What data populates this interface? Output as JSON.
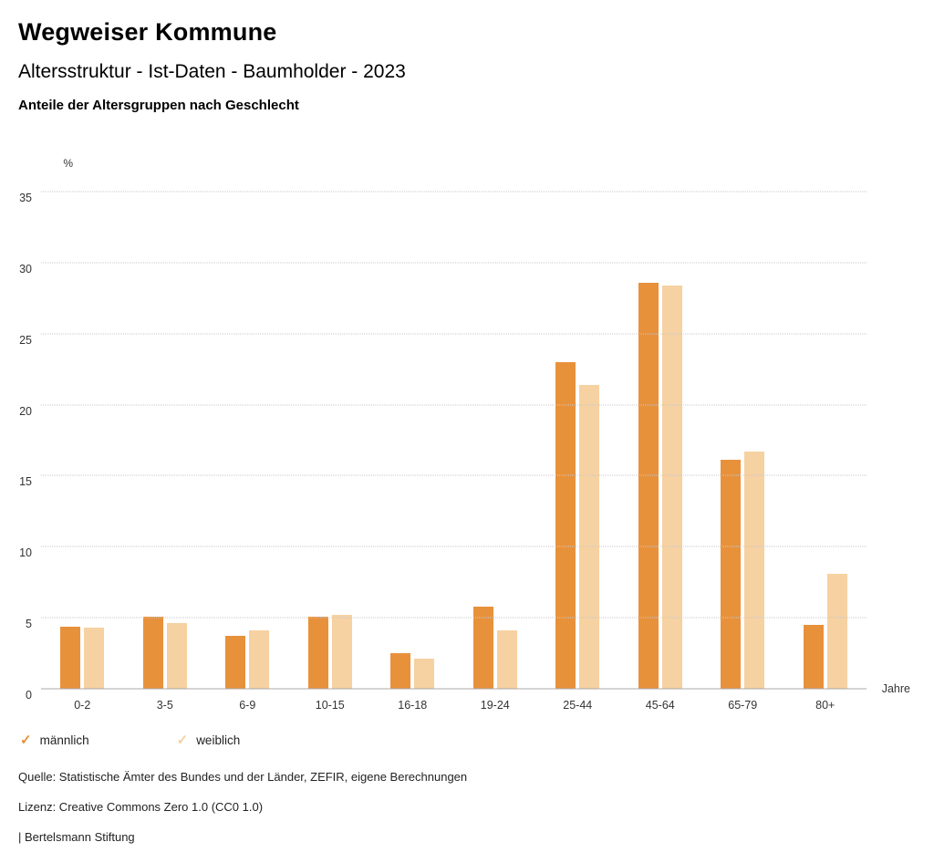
{
  "header": {
    "title": "Wegweiser Kommune",
    "subtitle": "Altersstruktur - Ist-Daten - Baumholder - 2023",
    "description": "Anteile der Altersgruppen nach Geschlecht"
  },
  "chart_data": {
    "type": "bar",
    "title": "Anteile der Altersgruppen nach Geschlecht",
    "ylabel": "%",
    "xlabel": "Jahre",
    "ylim": [
      0,
      35
    ],
    "yticks": [
      0,
      5,
      10,
      15,
      20,
      25,
      30,
      35
    ],
    "grid": "horizontal-dotted",
    "legend_position": "bottom-left",
    "categories": [
      "0-2",
      "3-5",
      "6-9",
      "10-15",
      "16-18",
      "19-24",
      "25-44",
      "45-64",
      "65-79",
      "80+"
    ],
    "series": [
      {
        "name": "männlich",
        "color": "#E8913B",
        "values": [
          4.4,
          5.1,
          3.7,
          5.1,
          2.5,
          5.8,
          23.0,
          28.6,
          16.1,
          4.5
        ]
      },
      {
        "name": "weiblich",
        "color": "#F6D1A1",
        "values": [
          4.3,
          4.6,
          4.1,
          5.2,
          2.1,
          4.1,
          21.4,
          28.4,
          16.7,
          8.1
        ]
      }
    ]
  },
  "legend": {
    "check_icon": "✓"
  },
  "footer": {
    "source": "Quelle: Statistische Ämter des Bundes und der Länder, ZEFIR, eigene Berechnungen",
    "license": "Lizenz: Creative Commons Zero 1.0 (CC0 1.0)",
    "attribution": "| Bertelsmann Stiftung"
  }
}
